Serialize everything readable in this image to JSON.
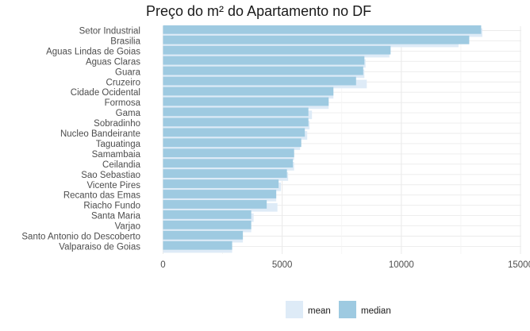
{
  "chart_data": {
    "type": "bar",
    "orientation": "horizontal",
    "title": "Preço do m² do Apartamento no DF",
    "xlabel": "",
    "ylabel": "",
    "xlim": [
      0,
      15000
    ],
    "x_ticks": [
      0,
      5000,
      10000,
      15000
    ],
    "x_tick_labels": [
      "0",
      "5000",
      "10000",
      "15000"
    ],
    "grid": true,
    "legend_position": "bottom",
    "categories": [
      "Setor Industrial",
      "Brasilia",
      "Aguas Lindas de Goias",
      "Aguas Claras",
      "Guara",
      "Cruzeiro",
      "Cidade Ocidental",
      "Formosa",
      "Gama",
      "Sobradinho",
      "Nucleo Bandeirante",
      "Taguatinga",
      "Samambaia",
      "Ceilandia",
      "Sao Sebastiao",
      "Vicente Pires",
      "Recanto das Emas",
      "Riacho Fundo",
      "Santa Maria",
      "Varjao",
      "Santo Antonio do Descoberto",
      "Valparaiso de Goias"
    ],
    "series": [
      {
        "name": "mean",
        "color": "#deebf7",
        "values": [
          13400,
          12400,
          9500,
          8500,
          8450,
          8550,
          7150,
          6950,
          6250,
          6150,
          6050,
          5750,
          5500,
          5500,
          5250,
          4950,
          4750,
          4800,
          3800,
          3700,
          3350,
          2900
        ]
      },
      {
        "name": "median",
        "color": "#9ecae1",
        "values": [
          13350,
          12850,
          9550,
          8450,
          8400,
          8100,
          7150,
          6950,
          6100,
          6100,
          5950,
          5800,
          5500,
          5450,
          5200,
          4850,
          4750,
          4350,
          3700,
          3700,
          3350,
          2900
        ]
      }
    ]
  }
}
